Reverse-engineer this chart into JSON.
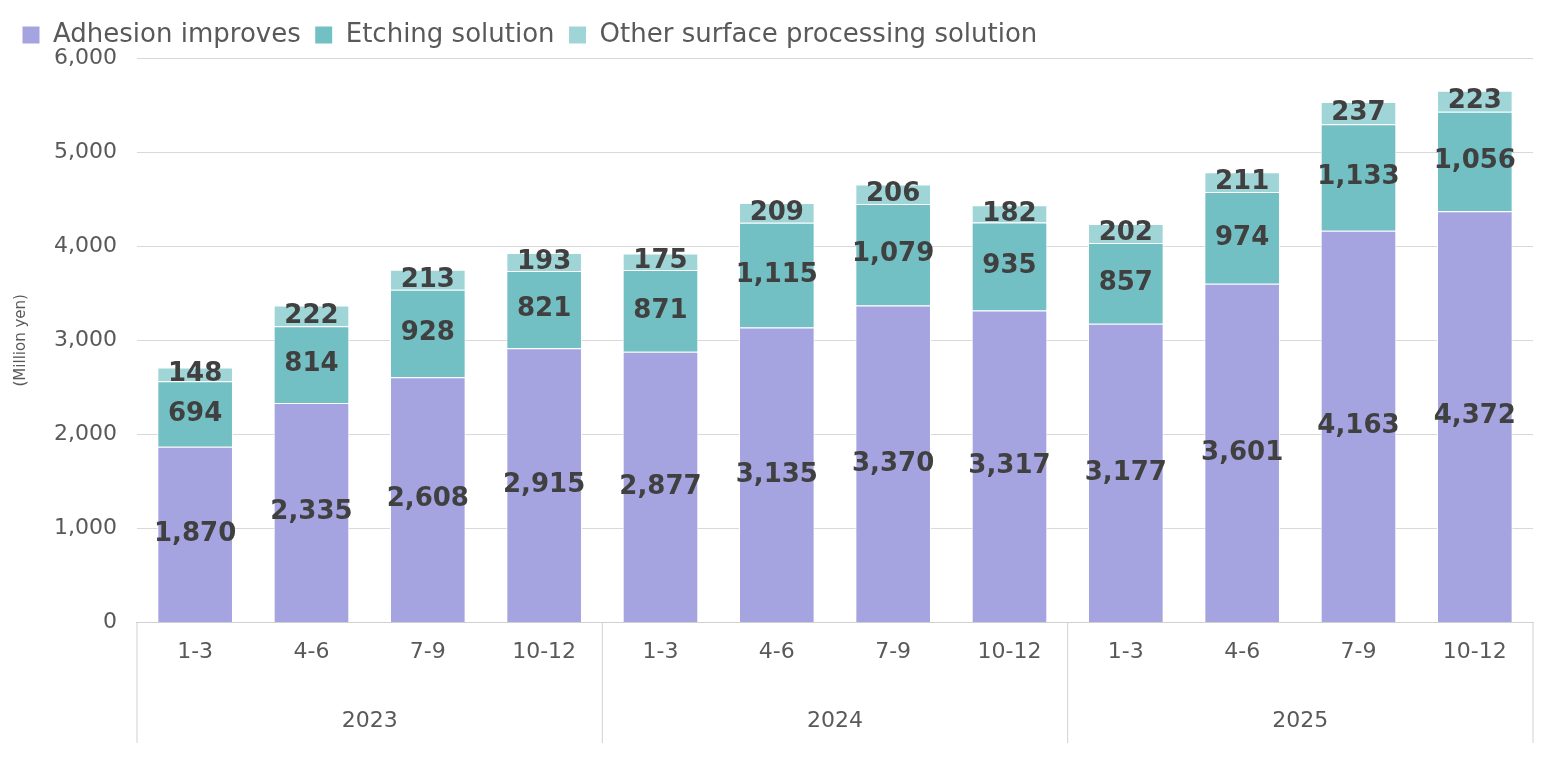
{
  "chart_data": {
    "type": "bar",
    "stacked": true,
    "categories": [
      "1-3",
      "4-6",
      "7-9",
      "10-12",
      "1-3",
      "4-6",
      "7-9",
      "10-12",
      "1-3",
      "4-6",
      "7-9",
      "10-12"
    ],
    "series": [
      {
        "name": "Adhesion improves",
        "color": "#a5a3e0",
        "values": [
          1870,
          2335,
          2608,
          2915,
          2877,
          3135,
          3370,
          3317,
          3177,
          3601,
          4163,
          4372
        ],
        "value_labels": [
          "1,870",
          "2,335",
          "2,608",
          "2,915",
          "2,877",
          "3,135",
          "3,370",
          "3,317",
          "3,177",
          "3,601",
          "4,163",
          "4,372"
        ]
      },
      {
        "name": "Etching solution",
        "color": "#72bfc4",
        "values": [
          694,
          814,
          928,
          821,
          871,
          1115,
          1079,
          935,
          857,
          974,
          1133,
          1056
        ],
        "value_labels": [
          "694",
          "814",
          "928",
          "821",
          "871",
          "1,115",
          "1,079",
          "935",
          "857",
          "974",
          "1,133",
          "1,056"
        ]
      },
      {
        "name": "Other surface processing solution",
        "color": "#a0d5d8",
        "values": [
          148,
          222,
          213,
          193,
          175,
          209,
          206,
          182,
          202,
          211,
          237,
          223
        ],
        "value_labels": [
          "148",
          "222",
          "213",
          "193",
          "175",
          "209",
          "206",
          "182",
          "202",
          "211",
          "237",
          "223"
        ]
      }
    ],
    "ylim": [
      0,
      6000
    ],
    "yticks": [
      0,
      {
        "value": 1000,
        "label": "1,000"
      },
      {
        "value": 2000,
        "label": "2,000"
      },
      {
        "value": 3000,
        "label": "3,000"
      },
      {
        "value": 4000,
        "label": "4,000"
      },
      {
        "value": 5000,
        "label": "5,000"
      },
      {
        "value": 6000,
        "label": "6,000"
      }
    ],
    "ylabel": "(Million yen)",
    "grid": "y",
    "legend": "top left",
    "annotations": [
      "2023",
      "2024",
      "2025"
    ]
  }
}
